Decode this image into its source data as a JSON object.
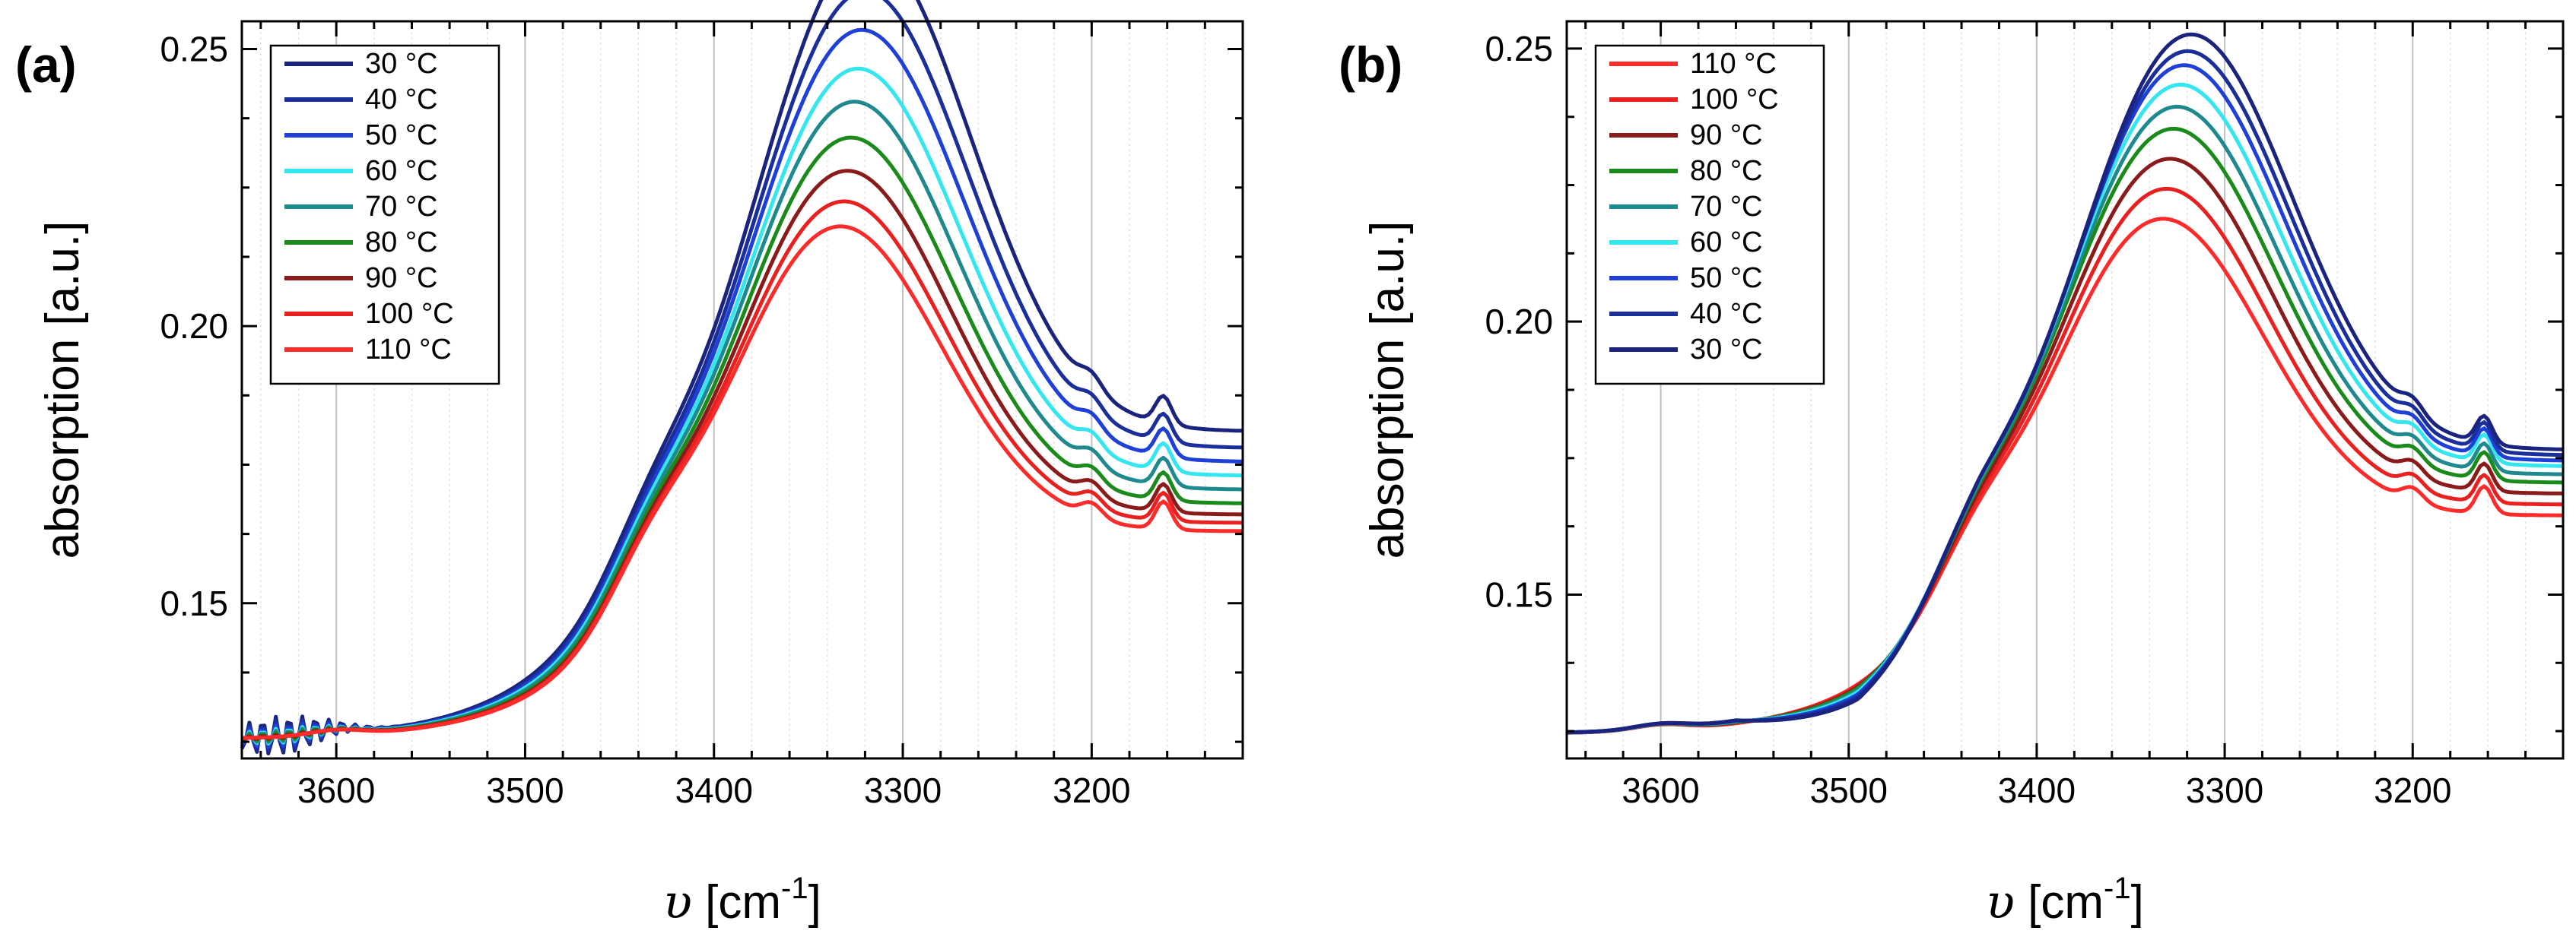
{
  "figure": {
    "panels": [
      "a",
      "b"
    ]
  },
  "chart_data": [
    {
      "panel_label": "(a)",
      "type": "line",
      "xlabel": "υ [cm",
      "xlabel_sup": "-1",
      "xlabel_close": "]",
      "ylabel": "absorption [a.u.]",
      "xlim": [
        3650,
        3120
      ],
      "ylim": [
        0.122,
        0.255
      ],
      "x_reversed": true,
      "xticks": [
        3600,
        3500,
        3400,
        3300,
        3200
      ],
      "xtick_labels": [
        "3600",
        "3500",
        "3400",
        "3300",
        "3200"
      ],
      "yticks": [
        0.15,
        0.2,
        0.25
      ],
      "ytick_labels": [
        "0.15",
        "0.20",
        "0.25"
      ],
      "grid": "vertical",
      "legend_position": "top-left",
      "legend": [
        "30 °C",
        "40 °C",
        "50 °C",
        "60 °C",
        "70 °C",
        "80 °C",
        "90 °C",
        "100 °C",
        "110 °C"
      ],
      "series": [
        {
          "name": "30 °C",
          "color": "#1a237e",
          "peak": 0.252,
          "peak_x": 3320,
          "tail_min": 0.181,
          "noise": 1.0
        },
        {
          "name": "40 °C",
          "color": "#1a2f9c",
          "peak": 0.247,
          "peak_x": 3322,
          "tail_min": 0.178,
          "noise": 0.8
        },
        {
          "name": "50 °C",
          "color": "#1f3fd9",
          "peak": 0.2425,
          "peak_x": 3324,
          "tail_min": 0.1755,
          "noise": 0.6
        },
        {
          "name": "60 °C",
          "color": "#33e6ef",
          "peak": 0.238,
          "peak_x": 3326,
          "tail_min": 0.173,
          "noise": 0.4
        },
        {
          "name": "70 °C",
          "color": "#1e8a8f",
          "peak": 0.2345,
          "peak_x": 3328,
          "tail_min": 0.1705,
          "noise": 0.3
        },
        {
          "name": "80 °C",
          "color": "#1a8a1a",
          "peak": 0.2305,
          "peak_x": 3330,
          "tail_min": 0.168,
          "noise": 0.2
        },
        {
          "name": "90 °C",
          "color": "#8b1a1a",
          "peak": 0.2265,
          "peak_x": 3332,
          "tail_min": 0.166,
          "noise": 0.1
        },
        {
          "name": "100 °C",
          "color": "#e82020",
          "peak": 0.2225,
          "peak_x": 3334,
          "tail_min": 0.1645,
          "noise": 0.0
        },
        {
          "name": "110 °C",
          "color": "#ff2a2a",
          "peak": 0.2195,
          "peak_x": 3336,
          "tail_min": 0.163,
          "noise": 0.0
        }
      ]
    },
    {
      "panel_label": "(b)",
      "type": "line",
      "xlabel": "υ [cm",
      "xlabel_sup": "-1",
      "xlabel_close": "]",
      "ylabel": "absorption [a.u.]",
      "xlim": [
        3650,
        3120
      ],
      "ylim": [
        0.12,
        0.255
      ],
      "x_reversed": true,
      "xticks": [
        3600,
        3500,
        3400,
        3300,
        3200
      ],
      "xtick_labels": [
        "3600",
        "3500",
        "3400",
        "3300",
        "3200"
      ],
      "yticks": [
        0.15,
        0.2,
        0.25
      ],
      "ytick_labels": [
        "0.15",
        "0.20",
        "0.25"
      ],
      "grid": "vertical",
      "legend_position": "top-left",
      "legend": [
        "110 °C",
        "100 °C",
        "90 °C",
        "80 °C",
        "70 °C",
        "60 °C",
        "50 °C",
        "40 °C",
        "30 °C"
      ],
      "series": [
        {
          "name": "110 °C",
          "color": "#ff2a2a",
          "peak": 0.219,
          "peak_x": 3336,
          "tail_min": 0.1645
        },
        {
          "name": "100 °C",
          "color": "#e82020",
          "peak": 0.2225,
          "peak_x": 3334,
          "tail_min": 0.1665
        },
        {
          "name": "90 °C",
          "color": "#8b1a1a",
          "peak": 0.226,
          "peak_x": 3332,
          "tail_min": 0.1685
        },
        {
          "name": "80 °C",
          "color": "#1a8a1a",
          "peak": 0.2295,
          "peak_x": 3330,
          "tail_min": 0.1705
        },
        {
          "name": "70 °C",
          "color": "#1e8a8f",
          "peak": 0.232,
          "peak_x": 3328,
          "tail_min": 0.172
        },
        {
          "name": "60 °C",
          "color": "#33e6ef",
          "peak": 0.2345,
          "peak_x": 3326,
          "tail_min": 0.1735
        },
        {
          "name": "50 °C",
          "color": "#1f3fd9",
          "peak": 0.237,
          "peak_x": 3324,
          "tail_min": 0.1745
        },
        {
          "name": "40 °C",
          "color": "#1a2f9c",
          "peak": 0.2385,
          "peak_x": 3322,
          "tail_min": 0.1755
        },
        {
          "name": "30 °C",
          "color": "#1a237e",
          "peak": 0.2405,
          "peak_x": 3320,
          "tail_min": 0.1765
        }
      ]
    }
  ]
}
